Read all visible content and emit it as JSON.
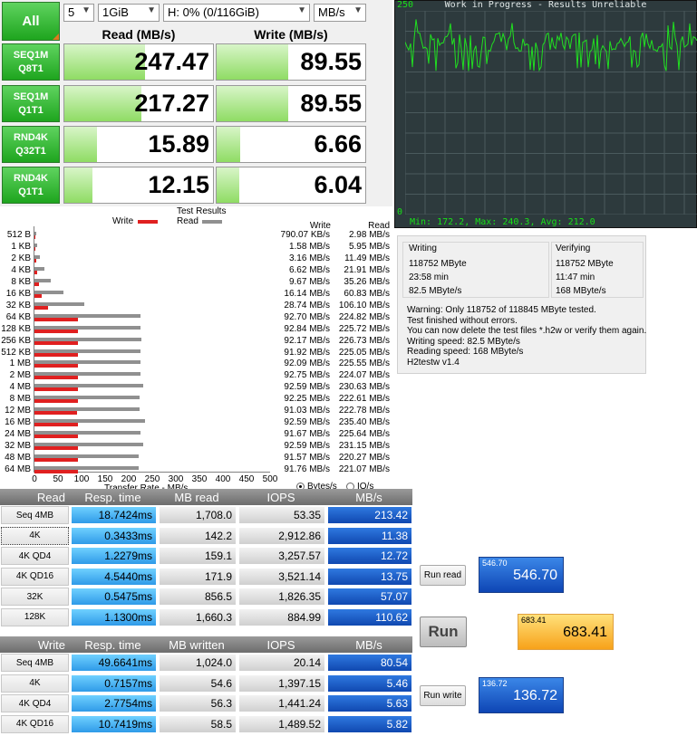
{
  "cdm": {
    "all_label": "All",
    "runs": "5",
    "size": "1GiB",
    "drive": "H: 0% (0/116GiB)",
    "unit": "MB/s",
    "read_header": "Read (MB/s)",
    "write_header": "Write (MB/s)",
    "rows": [
      {
        "l1": "SEQ1M",
        "l2": "Q8T1",
        "read": "247.47",
        "write": "89.55",
        "read_fill": 0.54,
        "write_fill": 0.48
      },
      {
        "l1": "SEQ1M",
        "l2": "Q1T1",
        "read": "217.27",
        "write": "89.55",
        "read_fill": 0.52,
        "write_fill": 0.48
      },
      {
        "l1": "RND4K",
        "l2": "Q32T1",
        "read": "15.89",
        "write": "6.66",
        "read_fill": 0.22,
        "write_fill": 0.16
      },
      {
        "l1": "RND4K",
        "l2": "Q1T1",
        "read": "12.15",
        "write": "6.04",
        "read_fill": 0.19,
        "write_fill": 0.15
      }
    ]
  },
  "monitor": {
    "title": "Work in Progress - Results Unreliable",
    "ymax": "250",
    "ymin": "0",
    "stats": "Min: 172.2, Max: 240.3, Avg: 212.0"
  },
  "hdtune": {
    "title": "Test Results",
    "legend_write": "Write",
    "legend_read": "Read",
    "col_write": "Write",
    "col_read": "Read",
    "xlabel": "Transfer Rate - MB/s",
    "radio_bytes": "Bytes/s",
    "radio_io": "IO/s",
    "ticks": [
      "0",
      "50",
      "100",
      "150",
      "200",
      "250",
      "300",
      "350",
      "400",
      "450",
      "500"
    ],
    "write_color": "#e02020",
    "read_color": "#909090",
    "rows": [
      {
        "cat": "512 B",
        "write": "790.07 KB/s",
        "read": "2.98 MB/s",
        "w": 0.77,
        "r": 2.98
      },
      {
        "cat": "1 KB",
        "write": "1.58 MB/s",
        "read": "5.95 MB/s",
        "w": 1.58,
        "r": 5.95
      },
      {
        "cat": "2 KB",
        "write": "3.16 MB/s",
        "read": "11.49 MB/s",
        "w": 3.16,
        "r": 11.49
      },
      {
        "cat": "4 KB",
        "write": "6.62 MB/s",
        "read": "21.91 MB/s",
        "w": 6.62,
        "r": 21.91
      },
      {
        "cat": "8 KB",
        "write": "9.67 MB/s",
        "read": "35.26 MB/s",
        "w": 9.67,
        "r": 35.26
      },
      {
        "cat": "16 KB",
        "write": "16.14 MB/s",
        "read": "60.83 MB/s",
        "w": 16.14,
        "r": 60.83
      },
      {
        "cat": "32 KB",
        "write": "28.74 MB/s",
        "read": "106.10 MB/s",
        "w": 28.74,
        "r": 106.1
      },
      {
        "cat": "64 KB",
        "write": "92.70 MB/s",
        "read": "224.82 MB/s",
        "w": 92.7,
        "r": 224.82
      },
      {
        "cat": "128 KB",
        "write": "92.84 MB/s",
        "read": "225.72 MB/s",
        "w": 92.84,
        "r": 225.72
      },
      {
        "cat": "256 KB",
        "write": "92.17 MB/s",
        "read": "226.73 MB/s",
        "w": 92.17,
        "r": 226.73
      },
      {
        "cat": "512 KB",
        "write": "91.92 MB/s",
        "read": "225.05 MB/s",
        "w": 91.92,
        "r": 225.05
      },
      {
        "cat": "1 MB",
        "write": "92.09 MB/s",
        "read": "225.55 MB/s",
        "w": 92.09,
        "r": 225.55
      },
      {
        "cat": "2 MB",
        "write": "92.75 MB/s",
        "read": "224.07 MB/s",
        "w": 92.75,
        "r": 224.07
      },
      {
        "cat": "4 MB",
        "write": "92.59 MB/s",
        "read": "230.63 MB/s",
        "w": 92.59,
        "r": 230.63
      },
      {
        "cat": "8 MB",
        "write": "92.25 MB/s",
        "read": "222.61 MB/s",
        "w": 92.25,
        "r": 222.61
      },
      {
        "cat": "12 MB",
        "write": "91.03 MB/s",
        "read": "222.78 MB/s",
        "w": 91.03,
        "r": 222.78
      },
      {
        "cat": "16 MB",
        "write": "92.59 MB/s",
        "read": "235.40 MB/s",
        "w": 92.59,
        "r": 235.4
      },
      {
        "cat": "24 MB",
        "write": "91.67 MB/s",
        "read": "225.64 MB/s",
        "w": 91.67,
        "r": 225.64
      },
      {
        "cat": "32 MB",
        "write": "92.59 MB/s",
        "read": "231.15 MB/s",
        "w": 92.59,
        "r": 231.15
      },
      {
        "cat": "48 MB",
        "write": "91.57 MB/s",
        "read": "220.27 MB/s",
        "w": 91.57,
        "r": 220.27
      },
      {
        "cat": "64 MB",
        "write": "91.76 MB/s",
        "read": "221.07 MB/s",
        "w": 91.76,
        "r": 221.07
      }
    ]
  },
  "h2testw": {
    "writing_title": "Writing",
    "writing_size": "118752 MByte",
    "writing_time": "23:58 min",
    "writing_speed": "82.5 MByte/s",
    "verifying_title": "Verifying",
    "verifying_size": "118752 MByte",
    "verifying_time": "11:47 min",
    "verifying_speed": "168 MByte/s",
    "status": [
      "Warning: Only 118752 of 118845 MByte tested.",
      "Test finished without errors.",
      "You can now delete the test files *.h2w or verify them again.",
      "Writing speed: 82.5 MByte/s",
      "Reading speed: 168 MByte/s",
      "H2testw v1.4"
    ]
  },
  "asssd": {
    "read_headers": [
      "Read",
      "Resp. time",
      "MB read",
      "IOPS",
      "MB/s"
    ],
    "read_rows": [
      {
        "label": "Seq 4MB",
        "resp": "18.7424ms",
        "mb": "1,708.0",
        "iops": "53.35",
        "mbs": "213.42"
      },
      {
        "label": "4K",
        "resp": "0.3433ms",
        "mb": "142.2",
        "iops": "2,912.86",
        "mbs": "11.38"
      },
      {
        "label": "4K QD4",
        "resp": "1.2279ms",
        "mb": "159.1",
        "iops": "3,257.57",
        "mbs": "12.72"
      },
      {
        "label": "4K QD16",
        "resp": "4.5440ms",
        "mb": "171.9",
        "iops": "3,521.14",
        "mbs": "13.75"
      },
      {
        "label": "32K",
        "resp": "0.5475ms",
        "mb": "856.5",
        "iops": "1,826.35",
        "mbs": "57.07"
      },
      {
        "label": "128K",
        "resp": "1.1300ms",
        "mb": "1,660.3",
        "iops": "884.99",
        "mbs": "110.62"
      }
    ],
    "write_headers": [
      "Write",
      "Resp. time",
      "MB written",
      "IOPS",
      "MB/s"
    ],
    "write_rows": [
      {
        "label": "Seq 4MB",
        "resp": "49.6641ms",
        "mb": "1,024.0",
        "iops": "20.14",
        "mbs": "80.54"
      },
      {
        "label": "4K",
        "resp": "0.7157ms",
        "mb": "54.6",
        "iops": "1,397.15",
        "mbs": "5.46"
      },
      {
        "label": "4K QD4",
        "resp": "2.7754ms",
        "mb": "56.3",
        "iops": "1,441.24",
        "mbs": "5.63"
      },
      {
        "label": "4K QD16",
        "resp": "10.7419ms",
        "mb": "58.5",
        "iops": "1,489.52",
        "mbs": "5.82"
      }
    ],
    "run_read_label": "Run read",
    "run_label": "Run",
    "run_write_label": "Run write",
    "score_read": "546.70",
    "score_total": "683.41",
    "score_write": "136.72"
  }
}
